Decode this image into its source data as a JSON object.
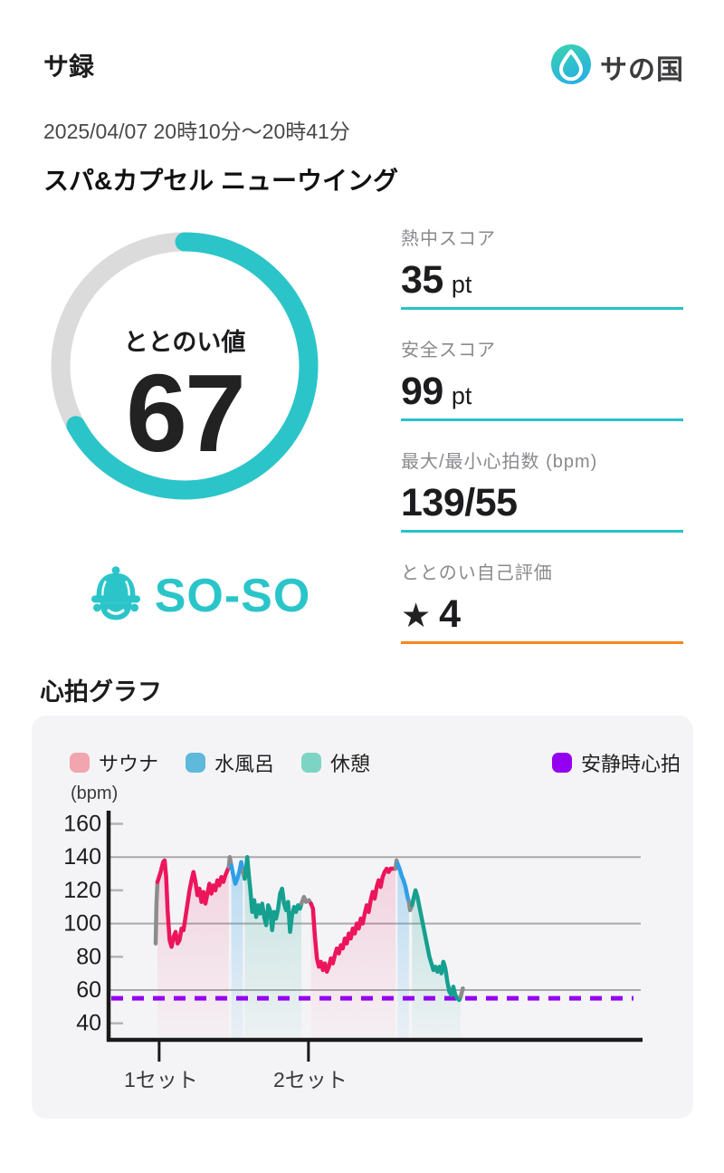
{
  "app": {
    "title": "サ録"
  },
  "brand": {
    "name": "サの国",
    "drop_icon": "water-drop",
    "circle_gradient": [
      "#3bd3ac",
      "#27b2e4"
    ]
  },
  "session": {
    "datetime": "2025/04/07 20時10分〜20時41分",
    "venue": "スパ&カプセル ニューウイング"
  },
  "gauge": {
    "label": "ととのい値",
    "value": "67",
    "percent": 67,
    "rating": "SO-SO",
    "ring_color": "#2bc5c9",
    "track_color": "#dbdbdb"
  },
  "stats": [
    {
      "label": "熱中スコア",
      "value": "35",
      "unit": "pt",
      "underline_color": "#28c3ca"
    },
    {
      "label": "安全スコア",
      "value": "99",
      "unit": "pt",
      "underline_color": "#28c3ca"
    },
    {
      "label": "最大/最小心拍数 (bpm)",
      "value": "139/55",
      "unit": "",
      "underline_color": "#28c3ca"
    },
    {
      "label": "ととのい自己評価",
      "star": "★",
      "value": "4",
      "unit": "",
      "underline_color": "#f6861f"
    }
  ],
  "chart_section": {
    "title": "心拍グラフ"
  },
  "chart_data": {
    "type": "line",
    "title": "心拍グラフ",
    "unit_label": "(bpm)",
    "ylabel": "bpm",
    "ylim": [
      30,
      168
    ],
    "y_ticks": [
      160,
      140,
      120,
      100,
      80,
      60,
      40
    ],
    "major_gridlines": [
      140,
      100,
      60
    ],
    "minor_ticks": [
      160,
      120,
      80,
      40
    ],
    "grid": true,
    "x_unit": "minutes",
    "x_markers": [
      {
        "label": "1セット",
        "t": 0.35
      },
      {
        "label": "2セット",
        "t": 15.35
      }
    ],
    "resting_hr": 55,
    "resting_line_color": "#9400f0",
    "legend": [
      {
        "key": "sauna",
        "label": "サウナ",
        "color": "#f1a5af"
      },
      {
        "key": "bath",
        "label": "水風呂",
        "color": "#5fb9db"
      },
      {
        "key": "rest",
        "label": "休憩",
        "color": "#7dd4c4"
      }
    ],
    "legend_right": {
      "key": "resting",
      "label": "安静時心拍",
      "color": "#9400f0"
    },
    "line_colors": {
      "warmup": "#8c8c8c",
      "transition": "#8c8c8c",
      "sauna": "#ec155b",
      "bath": "#2d9fe8",
      "rest": "#15a08f"
    },
    "fill_colors": {
      "sauna": {
        "top": "rgba(236,21,91,0.15)",
        "bottom": "rgba(236,21,91,0.02)"
      },
      "bath": {
        "top": "rgba(45,159,232,0.30)",
        "bottom": "rgba(45,159,232,0.05)"
      },
      "rest": {
        "top": "rgba(21,160,143,0.22)",
        "bottom": "rgba(21,160,143,0.03)"
      }
    },
    "series": [
      {
        "phase": "warmup",
        "points": [
          [
            0,
            88
          ],
          [
            0.08,
            112
          ],
          [
            0.18,
            125
          ]
        ]
      },
      {
        "phase": "sauna",
        "points": [
          [
            0.18,
            125
          ],
          [
            0.5,
            131
          ],
          [
            0.75,
            137
          ],
          [
            0.9,
            138
          ],
          [
            1.05,
            128
          ],
          [
            1.2,
            108
          ],
          [
            1.4,
            90
          ],
          [
            1.6,
            86
          ],
          [
            1.8,
            92
          ],
          [
            2.0,
            95
          ],
          [
            2.2,
            88
          ],
          [
            2.4,
            90
          ],
          [
            2.6,
            97
          ],
          [
            2.8,
            96
          ],
          [
            3.1,
            108
          ],
          [
            3.4,
            120
          ],
          [
            3.6,
            126
          ],
          [
            3.8,
            131
          ],
          [
            4.0,
            125
          ],
          [
            4.2,
            117
          ],
          [
            4.4,
            121
          ],
          [
            4.6,
            113
          ],
          [
            4.8,
            119
          ],
          [
            5.0,
            112
          ],
          [
            5.2,
            118
          ],
          [
            5.4,
            124
          ],
          [
            5.6,
            118
          ],
          [
            5.8,
            123
          ],
          [
            6.0,
            120
          ],
          [
            6.2,
            126
          ],
          [
            6.4,
            123
          ],
          [
            6.6,
            128
          ],
          [
            6.8,
            125
          ],
          [
            7.0,
            129
          ],
          [
            7.2,
            132
          ],
          [
            7.35,
            134
          ]
        ]
      },
      {
        "phase": "transition",
        "points": [
          [
            7.35,
            134
          ],
          [
            7.45,
            140
          ],
          [
            7.6,
            135
          ]
        ]
      },
      {
        "phase": "bath",
        "points": [
          [
            7.6,
            135
          ],
          [
            7.8,
            129
          ],
          [
            8.0,
            124
          ],
          [
            8.2,
            127
          ],
          [
            8.4,
            131
          ],
          [
            8.6,
            137
          ],
          [
            8.75,
            132
          ]
        ]
      },
      {
        "phase": "transition",
        "points": [
          [
            8.75,
            132
          ],
          [
            8.95,
            127
          ]
        ]
      },
      {
        "phase": "rest",
        "points": [
          [
            8.95,
            127
          ],
          [
            9.1,
            134
          ],
          [
            9.2,
            140
          ],
          [
            9.35,
            130
          ],
          [
            9.5,
            121
          ],
          [
            9.7,
            107
          ],
          [
            9.9,
            114
          ],
          [
            10.1,
            104
          ],
          [
            10.3,
            111
          ],
          [
            10.5,
            106
          ],
          [
            10.7,
            112
          ],
          [
            10.9,
            104
          ],
          [
            11.1,
            99
          ],
          [
            11.3,
            111
          ],
          [
            11.5,
            108
          ],
          [
            11.7,
            96
          ],
          [
            11.9,
            107
          ],
          [
            12.1,
            103
          ],
          [
            12.3,
            109
          ],
          [
            12.5,
            118
          ],
          [
            12.7,
            121
          ],
          [
            12.9,
            112
          ],
          [
            13.1,
            108
          ],
          [
            13.3,
            113
          ],
          [
            13.5,
            95
          ],
          [
            13.7,
            105
          ],
          [
            13.9,
            110
          ],
          [
            14.1,
            107
          ],
          [
            14.3,
            111
          ],
          [
            14.5,
            109
          ],
          [
            14.65,
            112
          ]
        ]
      },
      {
        "phase": "transition",
        "points": [
          [
            14.65,
            112
          ],
          [
            14.9,
            116
          ],
          [
            15.1,
            113
          ],
          [
            15.4,
            114
          ],
          [
            15.6,
            112
          ]
        ]
      },
      {
        "phase": "sauna",
        "points": [
          [
            15.6,
            112
          ],
          [
            15.8,
            109
          ],
          [
            16.0,
            92
          ],
          [
            16.2,
            79
          ],
          [
            16.4,
            74
          ],
          [
            16.6,
            77
          ],
          [
            16.8,
            72
          ],
          [
            17.0,
            76
          ],
          [
            17.2,
            71
          ],
          [
            17.4,
            74
          ],
          [
            17.6,
            79
          ],
          [
            17.8,
            76
          ],
          [
            18.0,
            81
          ],
          [
            18.2,
            85
          ],
          [
            18.4,
            82
          ],
          [
            18.6,
            87
          ],
          [
            18.8,
            85
          ],
          [
            19.0,
            91
          ],
          [
            19.2,
            88
          ],
          [
            19.4,
            94
          ],
          [
            19.6,
            91
          ],
          [
            19.8,
            97
          ],
          [
            20.0,
            94
          ],
          [
            20.2,
            100
          ],
          [
            20.4,
            97
          ],
          [
            20.6,
            103
          ],
          [
            20.8,
            100
          ],
          [
            21.0,
            106
          ],
          [
            21.2,
            111
          ],
          [
            21.4,
            107
          ],
          [
            21.6,
            114
          ],
          [
            21.8,
            119
          ],
          [
            22.0,
            115
          ],
          [
            22.2,
            122
          ],
          [
            22.4,
            126
          ],
          [
            22.6,
            122
          ],
          [
            22.8,
            128
          ],
          [
            23.0,
            131
          ],
          [
            23.2,
            133
          ],
          [
            23.4,
            131
          ],
          [
            23.6,
            133
          ],
          [
            23.9,
            133
          ],
          [
            24.1,
            133
          ]
        ]
      },
      {
        "phase": "transition",
        "points": [
          [
            24.1,
            133
          ],
          [
            24.2,
            138
          ],
          [
            24.3,
            136
          ]
        ]
      },
      {
        "phase": "bath",
        "points": [
          [
            24.3,
            136
          ],
          [
            24.5,
            133
          ],
          [
            24.7,
            129
          ],
          [
            24.9,
            126
          ],
          [
            25.1,
            122
          ],
          [
            25.3,
            116
          ],
          [
            25.45,
            113
          ]
        ]
      },
      {
        "phase": "transition",
        "points": [
          [
            25.45,
            113
          ],
          [
            25.55,
            108
          ],
          [
            25.75,
            111
          ]
        ]
      },
      {
        "phase": "rest",
        "points": [
          [
            25.75,
            111
          ],
          [
            25.9,
            115
          ],
          [
            26.1,
            120
          ],
          [
            26.3,
            116
          ],
          [
            26.5,
            110
          ],
          [
            26.7,
            104
          ],
          [
            26.9,
            98
          ],
          [
            27.1,
            92
          ],
          [
            27.3,
            86
          ],
          [
            27.5,
            80
          ],
          [
            27.7,
            76
          ],
          [
            27.9,
            72
          ],
          [
            28.1,
            74
          ],
          [
            28.3,
            71
          ],
          [
            28.5,
            74
          ],
          [
            28.7,
            70
          ],
          [
            28.9,
            77
          ],
          [
            29.1,
            73
          ],
          [
            29.3,
            65
          ],
          [
            29.5,
            59
          ],
          [
            29.7,
            57
          ],
          [
            29.9,
            62
          ],
          [
            30.1,
            57
          ],
          [
            30.3,
            55
          ],
          [
            30.5,
            54
          ],
          [
            30.65,
            56
          ]
        ]
      },
      {
        "phase": "transition",
        "points": [
          [
            30.65,
            56
          ],
          [
            30.85,
            61
          ]
        ]
      }
    ]
  }
}
